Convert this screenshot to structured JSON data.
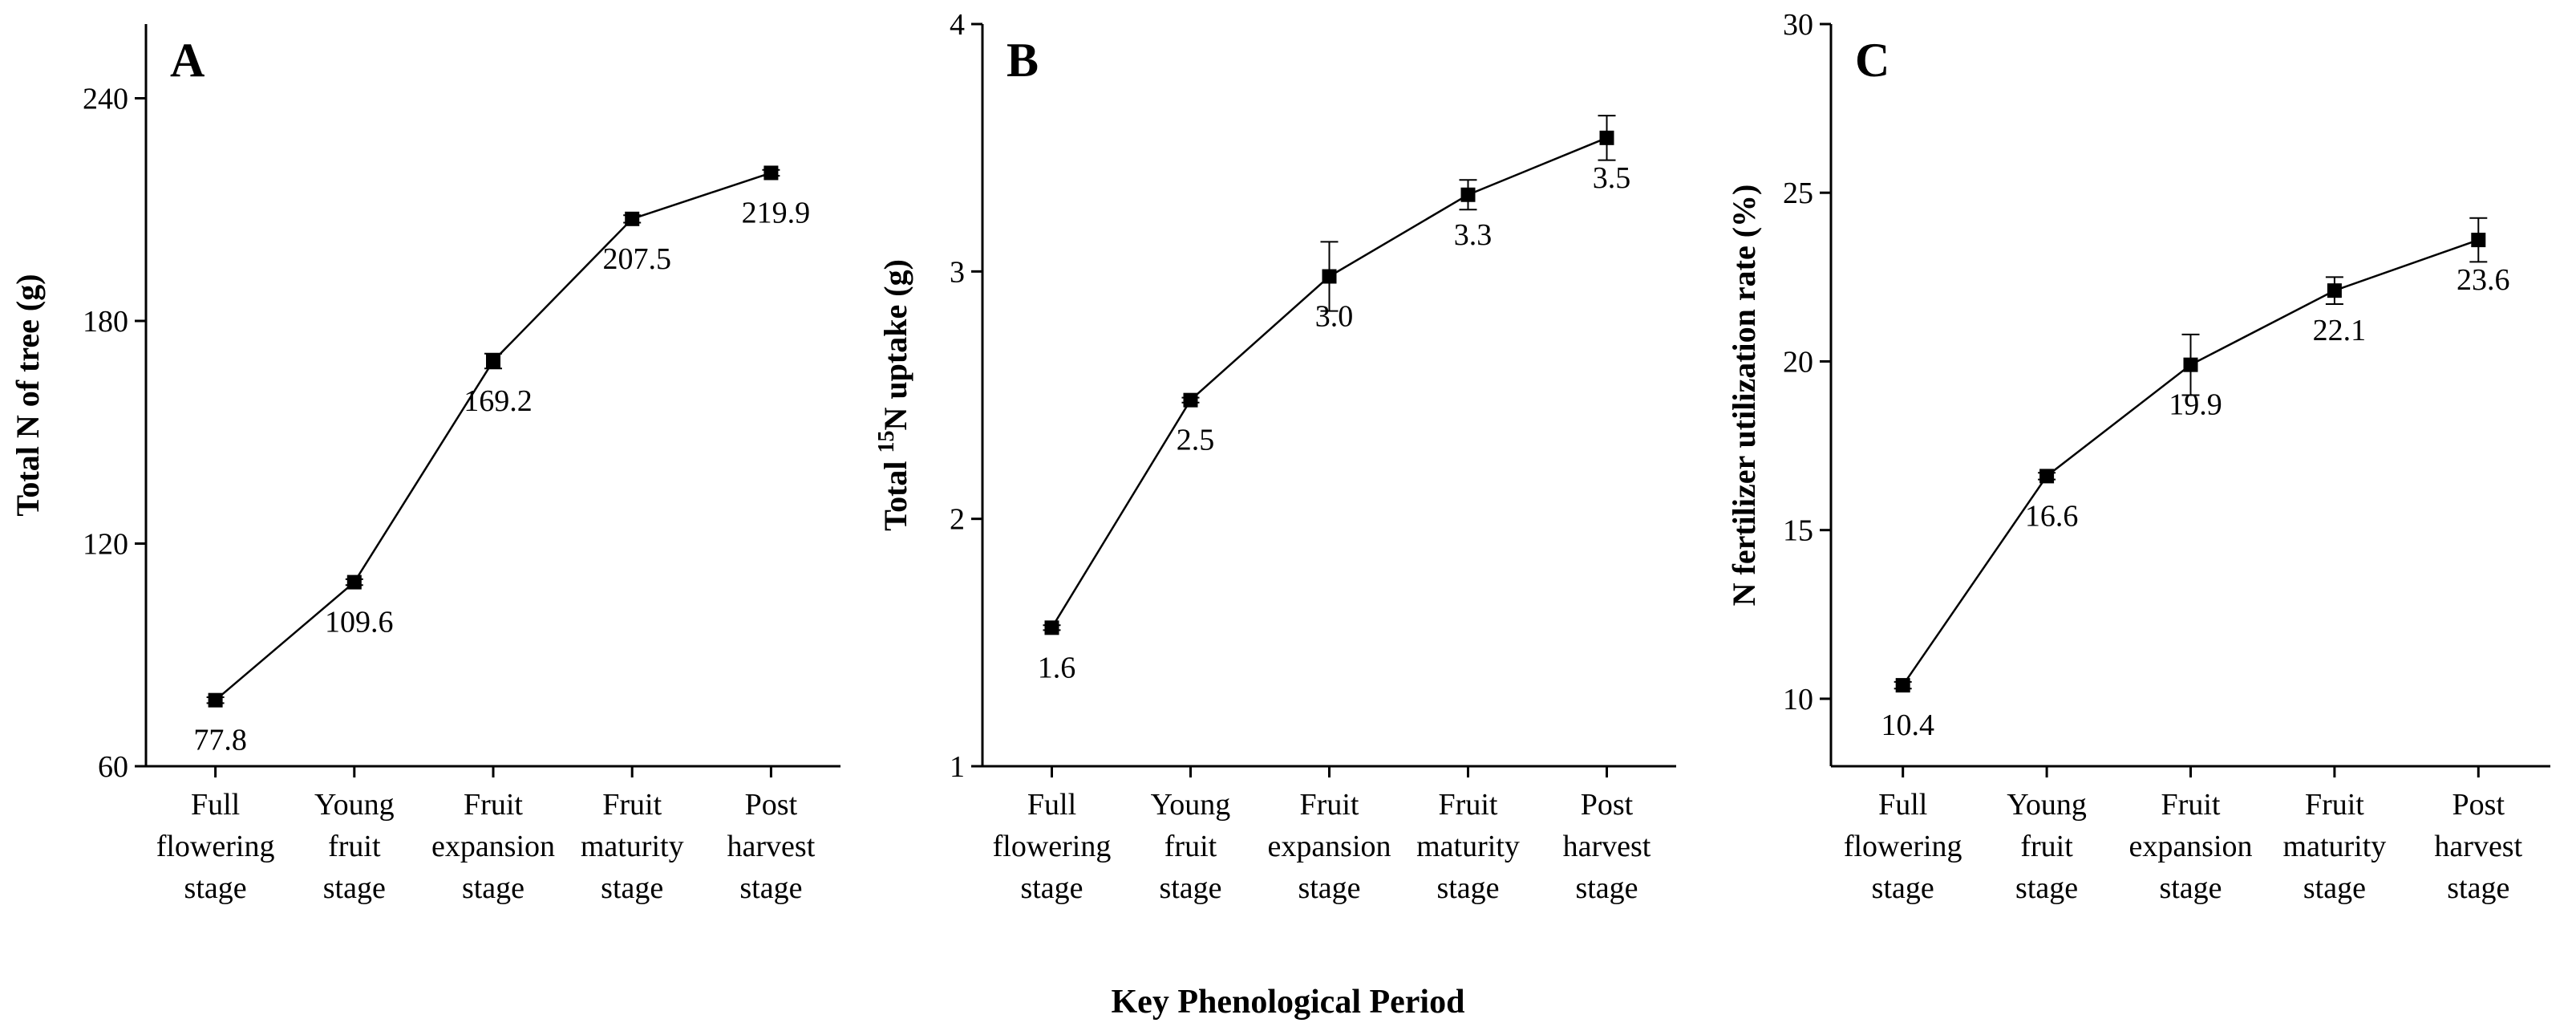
{
  "figure": {
    "x_axis_title": "Key Phenological Period"
  },
  "chart_data": [
    {
      "type": "line",
      "panel": "A",
      "ylabel": "Total N of tree (g)",
      "ylim": [
        60,
        260
      ],
      "yticks": [
        60,
        120,
        180,
        240
      ],
      "categories": [
        [
          "Full",
          "flowering",
          "stage"
        ],
        [
          "Young",
          "fruit",
          "stage"
        ],
        [
          "Fruit",
          "expansion",
          "stage"
        ],
        [
          "Fruit",
          "maturity",
          "stage"
        ],
        [
          "Post",
          "harvest",
          "stage"
        ]
      ],
      "values": [
        77.8,
        109.6,
        169.2,
        207.5,
        219.9
      ],
      "errors": [
        0.8,
        0.8,
        2.0,
        1.0,
        0.8
      ],
      "labels": [
        "77.8",
        "109.6",
        "169.2",
        "207.5",
        "219.9"
      ],
      "label_pos": [
        "below",
        "below",
        "below",
        "below",
        "below"
      ]
    },
    {
      "type": "line",
      "panel": "B",
      "ylabel_prefix": "Total ",
      "ylabel_sup": "15",
      "ylabel_suffix": "N uptake (g)",
      "ylim": [
        1,
        4
      ],
      "yticks": [
        1,
        2,
        3,
        4
      ],
      "categories": [
        [
          "Full",
          "flowering",
          "stage"
        ],
        [
          "Young",
          "fruit",
          "stage"
        ],
        [
          "Fruit",
          "expansion",
          "stage"
        ],
        [
          "Fruit",
          "maturity",
          "stage"
        ],
        [
          "Post",
          "harvest",
          "stage"
        ]
      ],
      "values": [
        1.56,
        2.48,
        2.98,
        3.31,
        3.54
      ],
      "errors": [
        0.01,
        0.01,
        0.14,
        0.06,
        0.09
      ],
      "labels": [
        "1.6",
        "2.5",
        "3.0",
        "3.3",
        "3.5"
      ],
      "label_pos": [
        "below",
        "below",
        "below",
        "below",
        "below"
      ]
    },
    {
      "type": "line",
      "panel": "C",
      "ylabel": "N fertilizer utilization rate (%)",
      "ylim": [
        8,
        30
      ],
      "yticks": [
        10,
        15,
        20,
        25,
        30
      ],
      "categories": [
        [
          "Full",
          "flowering",
          "stage"
        ],
        [
          "Young",
          "fruit",
          "stage"
        ],
        [
          "Fruit",
          "expansion",
          "stage"
        ],
        [
          "Fruit",
          "maturity",
          "stage"
        ],
        [
          "Post",
          "harvest",
          "stage"
        ]
      ],
      "values": [
        10.4,
        16.6,
        19.9,
        22.1,
        23.6
      ],
      "errors": [
        0.1,
        0.1,
        0.9,
        0.4,
        0.65
      ],
      "labels": [
        "10.4",
        "16.6",
        "19.9",
        "22.1",
        "23.6"
      ],
      "label_pos": [
        "below",
        "below",
        "below",
        "below",
        "below"
      ]
    }
  ]
}
